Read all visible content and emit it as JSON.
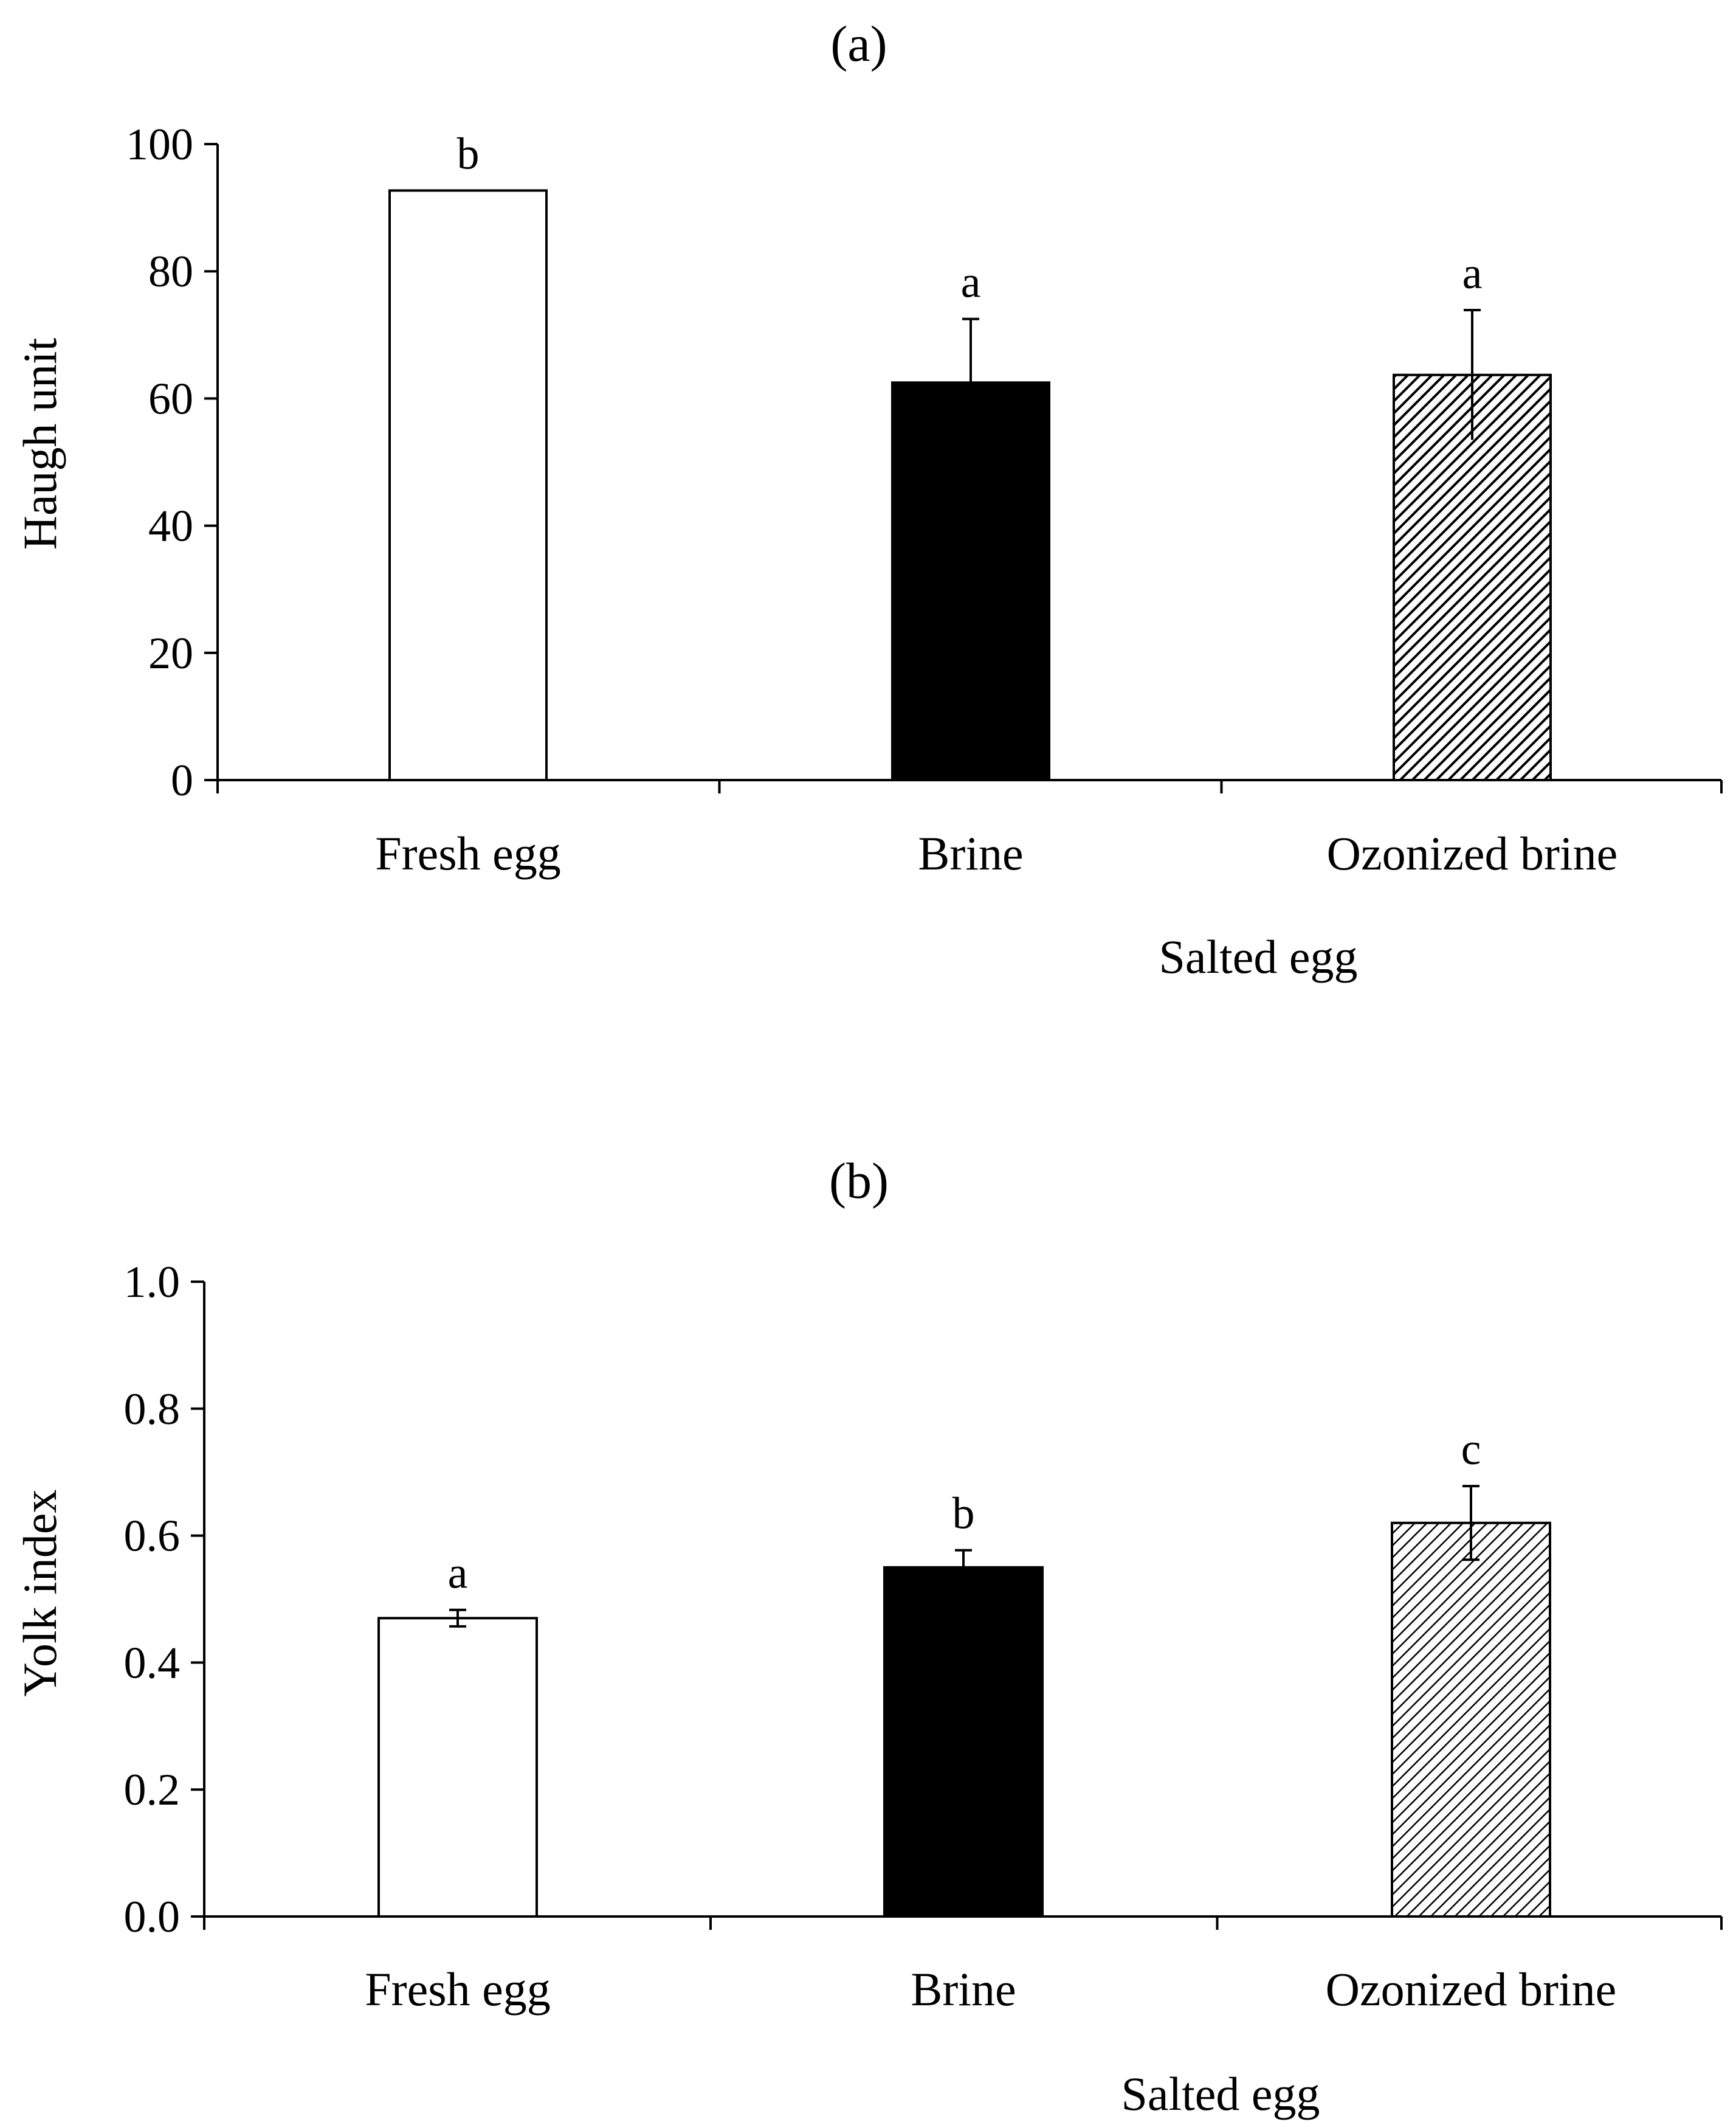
{
  "chart_data": [
    {
      "type": "bar",
      "panel_label": "(a)",
      "ylabel": "Haugh unit",
      "xlabel": "Salted egg",
      "categories": [
        "Fresh egg",
        "Brine",
        "Ozonized brine"
      ],
      "values": [
        92.7,
        62.5,
        63.7
      ],
      "errors": [
        0,
        10.0,
        10.2
      ],
      "significance_letters": [
        "b",
        "a",
        "a"
      ],
      "fills": [
        "white",
        "black",
        "hatched"
      ],
      "ylim": [
        0,
        100
      ],
      "yticks": [
        0,
        20,
        40,
        60,
        80,
        100
      ],
      "ytick_labels": [
        "0",
        "20",
        "40",
        "60",
        "80",
        "100"
      ],
      "grid": false,
      "legend": "none"
    },
    {
      "type": "bar",
      "panel_label": "(b)",
      "ylabel": "Yolk index",
      "xlabel": "Salted egg",
      "categories": [
        "Fresh egg",
        "Brine",
        "Ozonized brine"
      ],
      "values": [
        0.47,
        0.55,
        0.62
      ],
      "errors": [
        0.013,
        0.027,
        0.058
      ],
      "significance_letters": [
        "a",
        "b",
        "c"
      ],
      "fills": [
        "white",
        "black",
        "hatched"
      ],
      "ylim": [
        0,
        1.0
      ],
      "yticks": [
        0,
        0.2,
        0.4,
        0.6,
        0.8,
        1.0
      ],
      "ytick_labels": [
        "0.0",
        "0.2",
        "0.4",
        "0.6",
        "0.8",
        "1.0"
      ],
      "grid": false,
      "legend": "none"
    }
  ],
  "colors": {
    "axis": "#000000",
    "bar_white": "#ffffff",
    "bar_black": "#000000",
    "hatch": "#000000"
  }
}
